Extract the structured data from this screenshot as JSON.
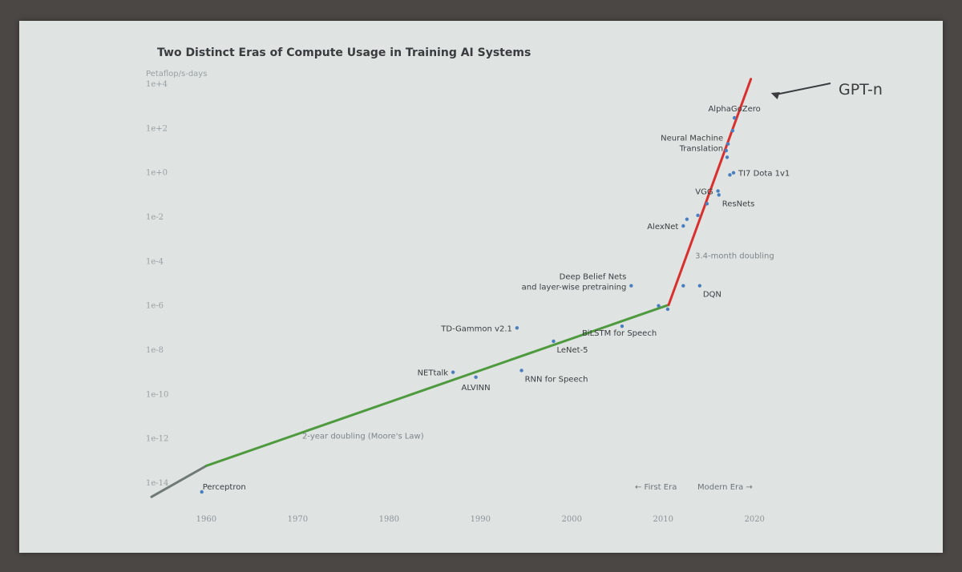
{
  "colors": {
    "point": "#4a7fbf",
    "first_era_line": "#4f9a3f",
    "modern_era_line": "#d9302e",
    "pre_line": "#707a74",
    "arrow": "#3a3c3e"
  },
  "chart_data": {
    "type": "scatter",
    "title": "Two Distinct Eras of Compute Usage in Training AI Systems",
    "ylabel": "Petaflop/s-days",
    "y_scale": "log",
    "xlim": [
      1954,
      2022
    ],
    "ylim": [
      1e-14,
      10000.0
    ],
    "x_ticks": [
      {
        "value": 1960,
        "label": "1960"
      },
      {
        "value": 1970,
        "label": "1970"
      },
      {
        "value": 1980,
        "label": "1980"
      },
      {
        "value": 1990,
        "label": "1990"
      },
      {
        "value": 2000,
        "label": "2000"
      },
      {
        "value": 2010,
        "label": "2010"
      },
      {
        "value": 2020,
        "label": "2020"
      }
    ],
    "y_ticks": [
      {
        "value": 10000.0,
        "label": "1e+4"
      },
      {
        "value": 100.0,
        "label": "1e+2"
      },
      {
        "value": 1.0,
        "label": "1e+0"
      },
      {
        "value": 0.01,
        "label": "1e-2"
      },
      {
        "value": 0.0001,
        "label": "1e-4"
      },
      {
        "value": 1e-06,
        "label": "1e-6"
      },
      {
        "value": 1e-08,
        "label": "1e-8"
      },
      {
        "value": 1e-10,
        "label": "1e-10"
      },
      {
        "value": 1e-12,
        "label": "1e-12"
      },
      {
        "value": 1e-14,
        "label": "1e-14"
      }
    ],
    "points": [
      {
        "x": 1959.5,
        "y": 4e-15,
        "label": "Perceptron",
        "label_pos": "above-left"
      },
      {
        "x": 1987,
        "y": 1e-09,
        "label": "NETtalk",
        "label_pos": "left"
      },
      {
        "x": 1989.5,
        "y": 6e-10,
        "label": "ALVINN",
        "label_pos": "below"
      },
      {
        "x": 1994.5,
        "y": 1.2e-09,
        "label": "RNN for Speech",
        "label_pos": "below-right"
      },
      {
        "x": 1998,
        "y": 2.5e-08,
        "label": "LeNet-5",
        "label_pos": "below-right"
      },
      {
        "x": 1994,
        "y": 1e-07,
        "label": "TD-Gammon v2.1",
        "label_pos": "left"
      },
      {
        "x": 2005.5,
        "y": 1.2e-07,
        "label": "BiLSTM for Speech",
        "label_pos": "below-left"
      },
      {
        "x": 2006.5,
        "y": 8e-06,
        "label": "Deep Belief Nets and layer-wise pretraining",
        "label_pos": "left"
      },
      {
        "x": 2009.5,
        "y": 1e-06
      },
      {
        "x": 2010.5,
        "y": 7e-07
      },
      {
        "x": 2012.2,
        "y": 8e-06
      },
      {
        "x": 2014,
        "y": 8e-06,
        "label": "DQN",
        "label_pos": "below-right"
      },
      {
        "x": 2012.2,
        "y": 0.004,
        "label": "AlexNet",
        "label_pos": "left"
      },
      {
        "x": 2012.6,
        "y": 0.008
      },
      {
        "x": 2013.8,
        "y": 0.012
      },
      {
        "x": 2014.8,
        "y": 0.04
      },
      {
        "x": 2016.0,
        "y": 0.15,
        "label": "VGG",
        "label_pos": "left"
      },
      {
        "x": 2016.1,
        "y": 0.1,
        "label": "ResNets",
        "label_pos": "below-right"
      },
      {
        "x": 2017.3,
        "y": 0.8
      },
      {
        "x": 2017.7,
        "y": 1.0,
        "label": "TI7 Dota 1v1",
        "label_pos": "right"
      },
      {
        "x": 2017.0,
        "y": 5
      },
      {
        "x": 2016.9,
        "y": 10
      },
      {
        "x": 2017.1,
        "y": 20,
        "label": "Neural Machine Translation",
        "label_pos": "left"
      },
      {
        "x": 2017.6,
        "y": 80
      },
      {
        "x": 2017.8,
        "y": 300,
        "label": "AlphaGoZero",
        "label_pos": "above"
      }
    ],
    "trend_lines": [
      {
        "from": [
          1954,
          2.4e-15
        ],
        "to": [
          1960,
          6e-14
        ],
        "color_key": "pre_line"
      },
      {
        "from": [
          1960,
          6e-14
        ],
        "to": [
          2010.6,
          1.1e-06
        ],
        "color_key": "first_era_line",
        "label": "2-year doubling (Moore's Law)",
        "label_at": [
          1970.5,
          1e-12
        ]
      },
      {
        "from": [
          2010.6,
          1.1e-06
        ],
        "to": [
          2019.6,
          17000.0
        ],
        "color_key": "modern_era_line",
        "label": "3.4-month doubling",
        "label_at": [
          2013.5,
          0.00014
        ]
      }
    ],
    "era_labels": {
      "first": "← First Era",
      "modern": "Modern Era →"
    },
    "annotation": {
      "text": "GPT-n",
      "arrow_to": [
        2021.8,
        4000.0
      ]
    }
  }
}
